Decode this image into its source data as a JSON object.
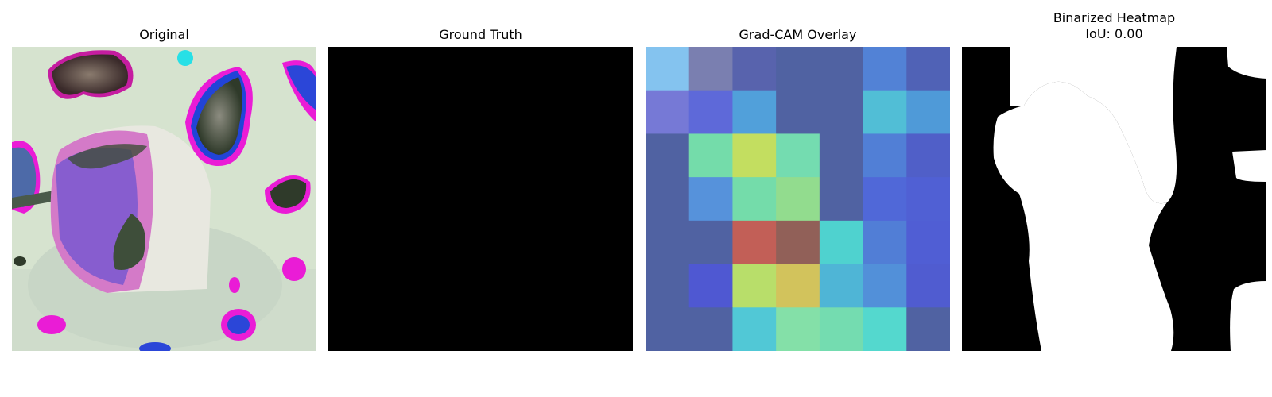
{
  "panels": [
    {
      "title": "Original"
    },
    {
      "title": "Ground Truth"
    },
    {
      "title": "Grad-CAM Overlay"
    },
    {
      "title": "Binarized Heatmap",
      "subtitle": "IoU: 0.00"
    }
  ],
  "gradcam_grid": {
    "rows": 7,
    "cols": 7,
    "colors": [
      [
        "#84c3ef",
        "#7a7fb0",
        "#5863ad",
        "#5062a2",
        "#5062a2",
        "#5282d6",
        "#5062b6"
      ],
      [
        "#7679d6",
        "#5e69d9",
        "#51a0da",
        "#5062a2",
        "#5062a2",
        "#51bed6",
        "#4f9ad8"
      ],
      [
        "#5062a2",
        "#74dcaa",
        "#c3de60",
        "#74dcb0",
        "#5062a2",
        "#517fd6",
        "#505fc8"
      ],
      [
        "#5062a2",
        "#5692db",
        "#74dcaa",
        "#92dc8e",
        "#5062a2",
        "#5068d8",
        "#5060d4"
      ],
      [
        "#5062a2",
        "#5062a2",
        "#c25f57",
        "#916058",
        "#4fd2cf",
        "#517ed6",
        "#505ed4"
      ],
      [
        "#5062a2",
        "#4f58d2",
        "#b8de6a",
        "#d2c35c",
        "#4fb5d6",
        "#5290d9",
        "#505cd0"
      ],
      [
        "#5062a2",
        "#5062a2",
        "#51c8d6",
        "#84e0a8",
        "#74dcb0",
        "#54d8ce",
        "#5062a2"
      ]
    ]
  }
}
